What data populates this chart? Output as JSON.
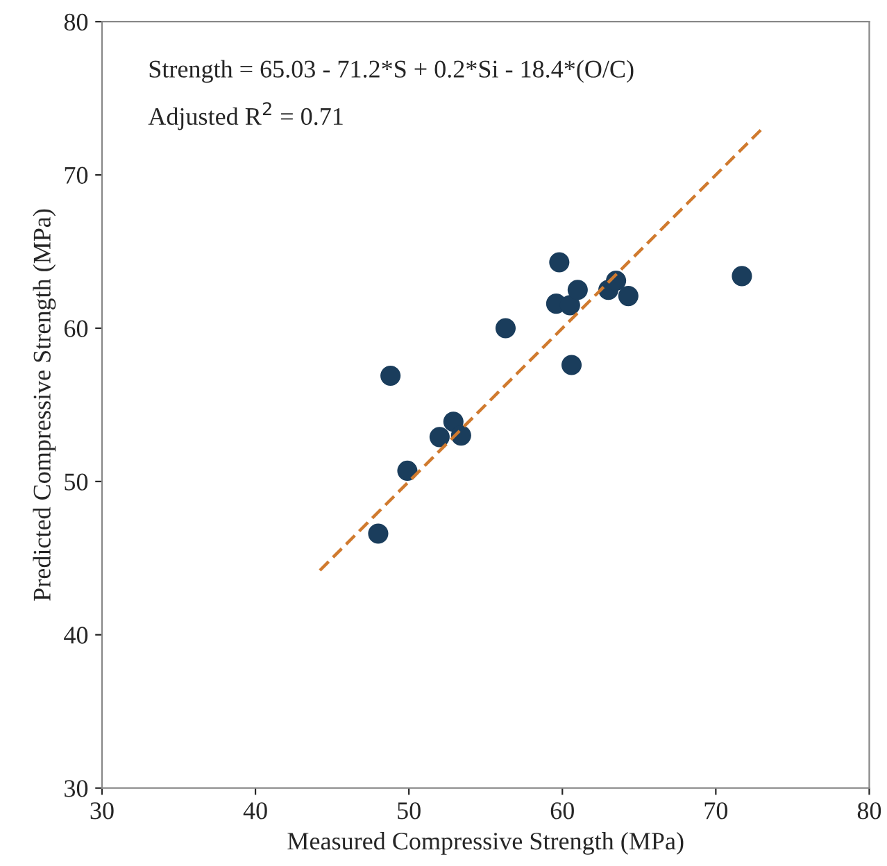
{
  "chart_data": {
    "type": "scatter",
    "xlabel": "Measured Compressive Strength (MPa)",
    "ylabel": "Predicted Compressive Strength (MPa)",
    "annotations": [
      "Strength = 65.03 - 71.2*S + 0.2*Si - 18.4*(O/C)",
      "Adjusted R$^{2}$ = 0.71"
    ],
    "series": [
      {
        "type": "scatter",
        "color": "#1a3d5c",
        "marker": "circle",
        "x": [
          48.0,
          48.8,
          49.9,
          52.0,
          52.9,
          53.4,
          56.3,
          59.8,
          59.6,
          60.5,
          61.0,
          60.6,
          63.0,
          63.5,
          64.3,
          71.7
        ],
        "values": [
          46.6,
          56.9,
          50.7,
          52.9,
          53.9,
          53.0,
          60.0,
          64.3,
          61.6,
          61.5,
          62.5,
          57.6,
          62.5,
          63.1,
          62.1,
          63.4
        ]
      },
      {
        "type": "line",
        "color": "#d07a2e",
        "line_style": "dashed",
        "marker": "none",
        "x": [
          44.2,
          73
        ],
        "values": [
          44.2,
          73
        ]
      }
    ],
    "xlim": [
      30,
      80
    ],
    "ylim": [
      30,
      80
    ],
    "xticks": [
      30,
      40,
      50,
      60,
      70,
      80
    ],
    "yticks": [
      30,
      40,
      50,
      60,
      70,
      80
    ],
    "grid": false,
    "legend": false
  }
}
